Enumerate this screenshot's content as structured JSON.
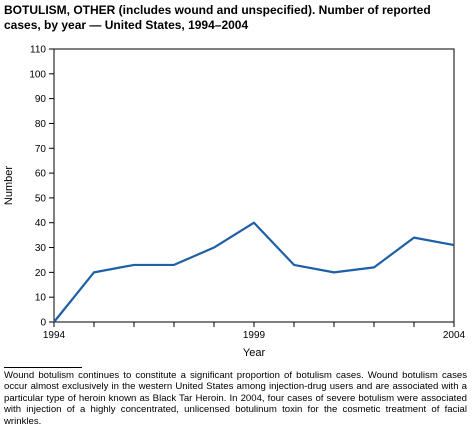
{
  "title": "BOTULISM, OTHER (includes wound and unspecified). Number of reported cases, by year — United States, 1994–2004",
  "footnote": "Wound botulism continues to constitute a significant proportion of botulism cases. Wound botulism cases occur almost exclusively in the western United States among injection-drug users and are associated with a particular type of heroin known as Black Tar Heroin. In 2004, four cases of severe botulism were associated with injection of a highly concentrated, unlicensed botulinum toxin for the cosmetic treatment of facial wrinkles.",
  "chart_data": {
    "type": "line",
    "title": "BOTULISM, OTHER (includes wound and unspecified). Number of reported cases, by year — United States, 1994–2004",
    "xlabel": "Year",
    "ylabel": "Number",
    "xlim": [
      1994,
      2004
    ],
    "ylim": [
      0,
      110
    ],
    "x_ticks": [
      1994,
      1999,
      2004
    ],
    "y_ticks": [
      0,
      10,
      20,
      30,
      40,
      50,
      60,
      70,
      80,
      90,
      100,
      110
    ],
    "grid": false,
    "line_color": "#1f5fa6",
    "series": [
      {
        "x": [
          1994,
          1995,
          1996,
          1997,
          1998,
          1999,
          2000,
          2001,
          2002,
          2003,
          2004
        ],
        "values": [
          0,
          20,
          23,
          23,
          30,
          40,
          23,
          20,
          22,
          34,
          31
        ]
      }
    ]
  }
}
